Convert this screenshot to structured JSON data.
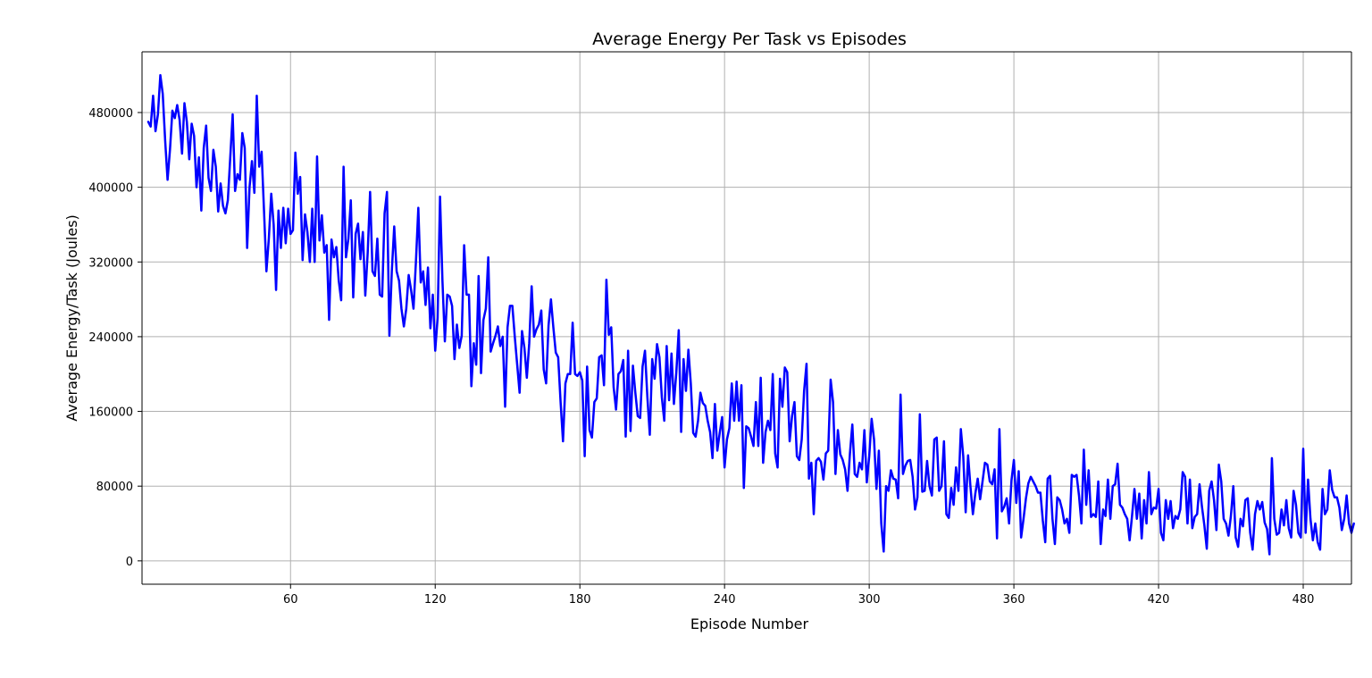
{
  "chart_data": {
    "type": "line",
    "title": "Average Energy Per Task vs Episodes",
    "xlabel": "Episode Number",
    "ylabel": "Average Energy/Task (Joules)",
    "xlim": [
      1,
      500
    ],
    "ylim": [
      -25000,
      545000
    ],
    "x_ticks": [
      60,
      120,
      180,
      240,
      300,
      360,
      420,
      480
    ],
    "y_ticks": [
      0,
      80000,
      160000,
      240000,
      320000,
      400000,
      480000
    ],
    "grid": true,
    "line_color": "#0000ff",
    "series": [
      {
        "x_start": 1,
        "x_step": 1,
        "values": [
          470000,
          465000,
          498000,
          460000,
          478000,
          520000,
          500000,
          450000,
          408000,
          440000,
          482000,
          474000,
          488000,
          472000,
          436000,
          490000,
          470000,
          430000,
          468000,
          455000,
          400000,
          432000,
          375000,
          442000,
          466000,
          410000,
          396000,
          440000,
          422000,
          374000,
          404000,
          380000,
          372000,
          386000,
          432000,
          478000,
          396000,
          414000,
          408000,
          458000,
          442000,
          335000,
          400000,
          428000,
          394000,
          498000,
          422000,
          438000,
          375000,
          310000,
          345000,
          393000,
          360000,
          290000,
          375000,
          335000,
          378000,
          340000,
          377000,
          350000,
          354000,
          437000,
          393000,
          411000,
          322000,
          371000,
          352000,
          320000,
          377000,
          320000,
          433000,
          343000,
          370000,
          330000,
          338000,
          258000,
          344000,
          325000,
          336000,
          300000,
          279000,
          422000,
          325000,
          345000,
          386000,
          282000,
          350000,
          361000,
          323000,
          352000,
          284000,
          330000,
          395000,
          310000,
          305000,
          345000,
          285000,
          283000,
          372000,
          395000,
          241000,
          310000,
          358000,
          310000,
          300000,
          270000,
          251000,
          270000,
          306000,
          290000,
          270000,
          320000,
          378000,
          298000,
          310000,
          274000,
          314000,
          249000,
          285000,
          225000,
          260000,
          390000,
          300000,
          235000,
          285000,
          283000,
          273000,
          216000,
          253000,
          228000,
          241000,
          338000,
          285000,
          285000,
          187000,
          233000,
          210000,
          305000,
          201000,
          258000,
          270000,
          325000,
          224000,
          233000,
          241000,
          251000,
          230000,
          240000,
          165000,
          250000,
          273000,
          273000,
          240000,
          210000,
          180000,
          246000,
          228000,
          196000,
          233000,
          294000,
          240000,
          248000,
          253000,
          268000,
          205000,
          190000,
          252000,
          280000,
          250000,
          223000,
          218000,
          170000,
          128000,
          190000,
          200000,
          200000,
          255000,
          200000,
          198000,
          202000,
          193000,
          112000,
          208000,
          140000,
          132000,
          170000,
          174000,
          218000,
          220000,
          188000,
          301000,
          242000,
          250000,
          186000,
          162000,
          200000,
          203000,
          215000,
          133000,
          225000,
          139000,
          209000,
          180000,
          155000,
          153000,
          208000,
          225000,
          175000,
          135000,
          216000,
          195000,
          232000,
          218000,
          175000,
          150000,
          230000,
          172000,
          222000,
          168000,
          202000,
          247000,
          138000,
          216000,
          182000,
          226000,
          190000,
          137000,
          133000,
          150000,
          180000,
          169000,
          166000,
          150000,
          138000,
          110000,
          168000,
          118000,
          137000,
          154000,
          100000,
          130000,
          142000,
          190000,
          150000,
          192000,
          150000,
          188000,
          78000,
          144000,
          142000,
          133000,
          123000,
          170000,
          123000,
          196000,
          105000,
          138000,
          150000,
          140000,
          200000,
          115000,
          100000,
          195000,
          165000,
          207000,
          202000,
          128000,
          155000,
          170000,
          112000,
          108000,
          130000,
          182000,
          211000,
          88000,
          105000,
          50000,
          107000,
          110000,
          106000,
          87000,
          115000,
          118000,
          194000,
          170000,
          93000,
          140000,
          114000,
          108000,
          98000,
          75000,
          115000,
          146000,
          93000,
          90000,
          105000,
          98000,
          140000,
          84000,
          112000,
          152000,
          130000,
          77000,
          118000,
          40000,
          10000,
          80000,
          75000,
          97000,
          88000,
          87000,
          67000,
          178000,
          93000,
          102000,
          107000,
          108000,
          90000,
          55000,
          68000,
          157000,
          74000,
          75000,
          107000,
          80000,
          70000,
          130000,
          132000,
          75000,
          80000,
          128000,
          50000,
          46000,
          78000,
          60000,
          100000,
          75000,
          141000,
          112000,
          52000,
          113000,
          79000,
          50000,
          72000,
          88000,
          66000,
          85000,
          105000,
          103000,
          85000,
          82000,
          98000,
          24000,
          141000,
          53000,
          58000,
          67000,
          40000,
          86000,
          108000,
          62000,
          96000,
          25000,
          45000,
          67000,
          83000,
          90000,
          85000,
          80000,
          73000,
          73000,
          43000,
          20000,
          88000,
          91000,
          45000,
          18000,
          68000,
          65000,
          55000,
          40000,
          45000,
          30000,
          92000,
          90000,
          92000,
          70000,
          40000,
          119000,
          60000,
          97000,
          47000,
          50000,
          47000,
          85000,
          18000,
          55000,
          48000,
          87000,
          45000,
          80000,
          82000,
          104000,
          60000,
          57000,
          50000,
          45000,
          22000,
          48000,
          77000,
          45000,
          72000,
          24000,
          65000,
          40000,
          95000,
          50000,
          57000,
          56000,
          77000,
          30000,
          22000,
          65000,
          45000,
          64000,
          35000,
          48000,
          45000,
          55000,
          95000,
          90000,
          40000,
          87000,
          35000,
          47000,
          50000,
          82000,
          58000,
          38000,
          13000,
          75000,
          85000,
          65000,
          33000,
          103000,
          85000,
          45000,
          40000,
          27000,
          48000,
          80000,
          25000,
          15000,
          45000,
          37000,
          65000,
          67000,
          30000,
          12000,
          50000,
          64000,
          55000,
          63000,
          41000,
          34000,
          7000,
          110000,
          45000,
          28000,
          30000,
          55000,
          38000,
          65000,
          35000,
          25000,
          75000,
          60000,
          30000,
          25000,
          120000,
          30000,
          87000,
          45000,
          22000,
          40000,
          20000,
          12000,
          77000,
          50000,
          55000,
          97000,
          76000,
          68000,
          68000,
          57000,
          33000,
          45000,
          70000,
          40000,
          30000,
          40000
        ]
      }
    ]
  }
}
